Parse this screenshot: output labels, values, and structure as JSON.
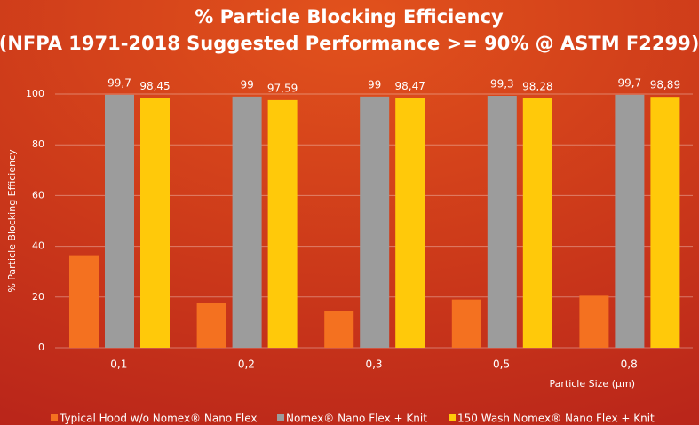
{
  "chart_data": {
    "type": "bar",
    "title": "% Particle Blocking Efficiency",
    "subtitle": "(NFPA 1971-2018 Suggested Performance >= 90% @ ASTM F2299)",
    "y_label": "% Particle Blocking Efficiency",
    "x_label": "Particle Size (µm)",
    "categories": [
      "0,1",
      "0,2",
      "0,3",
      "0,5",
      "0,8"
    ],
    "series": [
      {
        "name": "Typical Hood w/o Nomex® Nano Flex",
        "color": "#f47120",
        "values": [
          36.5,
          17.5,
          14.5,
          19,
          20.5
        ]
      },
      {
        "name": "Nomex® Nano Flex + Knit",
        "color": "#9c9c9c",
        "values": [
          99.7,
          99,
          99,
          99.3,
          99.7
        ],
        "value_labels": [
          "99,7",
          "99",
          "99",
          "99,3",
          "99,7"
        ]
      },
      {
        "name": "150 Wash Nomex® Nano Flex + Knit",
        "color": "#ffc90a",
        "values": [
          98.45,
          97.59,
          98.47,
          98.28,
          98.89
        ],
        "value_labels": [
          "98,45",
          "97,59",
          "98,47",
          "98,28",
          "98,89"
        ]
      }
    ],
    "ylim": [
      0,
      100
    ],
    "yticks": [
      0,
      20,
      40,
      60,
      80,
      100
    ],
    "grid": true
  }
}
